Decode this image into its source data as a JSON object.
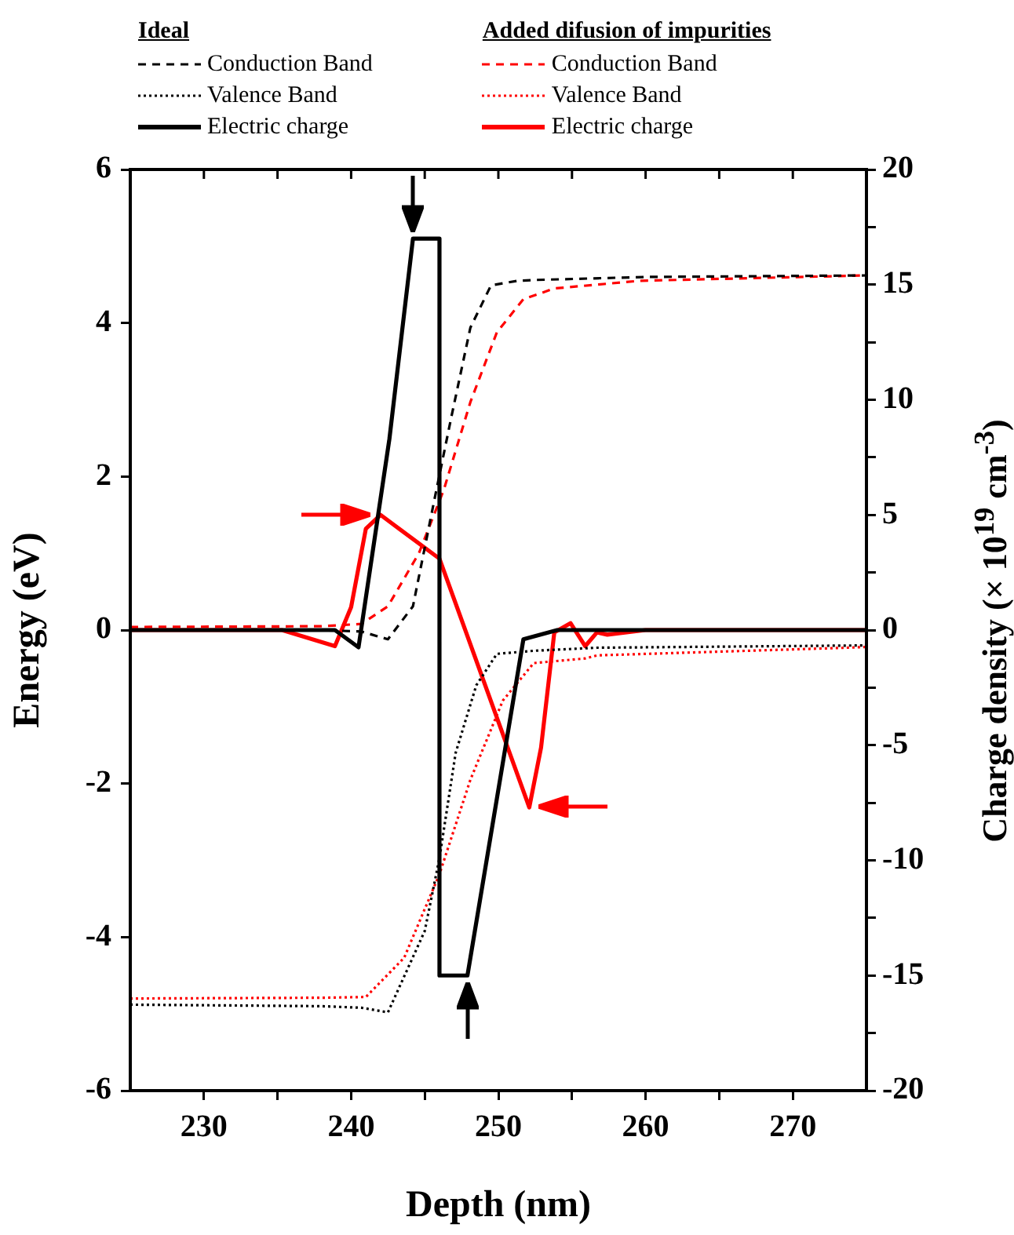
{
  "chart_data": {
    "type": "line",
    "xlabel": "Depth (nm)",
    "ylabel": "Energy (eV)",
    "y2label": "Charge density (× 10$^{19}$ cm$^{-3}$)",
    "annotations": [
      "Ideal",
      "Added difusion of impurities"
    ],
    "legend": "top",
    "grid": false,
    "marker": "none",
    "xlim": [
      225,
      275
    ],
    "xticks": [
      230,
      {
        "value": 235,
        "label": null
      },
      240,
      {
        "value": 245,
        "label": null
      },
      250,
      {
        "value": 255,
        "label": null
      },
      260,
      {
        "value": 265,
        "label": null
      },
      270
    ],
    "ylim": [
      -6,
      6
    ],
    "yticks": [
      -6,
      -4,
      -2,
      0,
      2,
      4,
      6
    ],
    "y2lim": [
      -20,
      20
    ],
    "y2ticks": [
      -20,
      {
        "value": -17.5,
        "label": null
      },
      -15,
      {
        "value": -12.5,
        "label": null
      },
      -10,
      {
        "value": -7.5,
        "label": null
      },
      -5,
      {
        "value": -2.5,
        "label": null
      },
      0,
      {
        "value": 2.5,
        "label": null
      },
      5,
      {
        "value": 7.5,
        "label": null
      },
      10,
      {
        "value": 12.5,
        "label": null
      },
      15,
      {
        "value": 17.5,
        "label": null
      },
      20
    ],
    "series": [
      {
        "name": "Conduction Band",
        "color": "#000000",
        "line_style": "dashed",
        "x": [
          225,
          238,
          240.7,
          242.5,
          244.2,
          245.7,
          246.8,
          248.1,
          249.5,
          251.3,
          252.4,
          260,
          275
        ],
        "values": [
          0,
          0,
          -0.02,
          -0.12,
          0.31,
          1.74,
          2.77,
          3.94,
          4.49,
          4.55,
          4.56,
          4.6,
          4.62
        ]
      },
      {
        "name": "Valence Band",
        "color": "#000000",
        "line_style": "dotted",
        "x": [
          225,
          238,
          240.7,
          242.5,
          245.0,
          246.0,
          247.1,
          248.5,
          249.9,
          252.4,
          256.7,
          275
        ],
        "values": [
          -4.88,
          -4.9,
          -4.92,
          -4.98,
          -3.92,
          -2.97,
          -1.6,
          -0.72,
          -0.31,
          -0.27,
          -0.23,
          -0.2
        ]
      },
      {
        "name": "Electric charge",
        "color": "#000000",
        "line_style": "solid",
        "axis": "y2",
        "x": [
          225,
          238.9,
          240.5,
          242.6,
          244.2,
          246.0,
          246.0,
          247.9,
          251.7,
          254.0,
          260,
          275
        ],
        "values": [
          0,
          0,
          -0.75,
          8.3,
          17,
          17,
          -15,
          -15,
          -0.4,
          0,
          0,
          0
        ]
      },
      {
        "name": "Conduction Band",
        "color": "#ff0000",
        "line_style": "dashed",
        "x": [
          225,
          238,
          240.7,
          242.5,
          244.6,
          246.3,
          248.1,
          249.9,
          251.7,
          253.8,
          259.6,
          275
        ],
        "values": [
          0.04,
          0.05,
          0.08,
          0.31,
          1.0,
          1.83,
          2.97,
          3.88,
          4.31,
          4.45,
          4.55,
          4.62
        ]
      },
      {
        "name": "Valence Band",
        "color": "#ff0000",
        "line_style": "dotted",
        "x": [
          225,
          238,
          241.0,
          243.6,
          246.0,
          248.1,
          250.3,
          252.4,
          255.9,
          256.7,
          273.7,
          275
        ],
        "values": [
          -4.8,
          -4.79,
          -4.78,
          -4.27,
          -3.18,
          -1.95,
          -0.92,
          -0.43,
          -0.37,
          -0.33,
          -0.23,
          -0.22
        ]
      },
      {
        "name": "Electric charge",
        "color": "#ff0000",
        "line_style": "solid",
        "axis": "y2",
        "x": [
          225,
          235.3,
          238.9,
          240.0,
          241.0,
          242.0,
          246.0,
          252.1,
          252.9,
          253.8,
          254.9,
          255.9,
          256.7,
          257.4,
          260,
          275
        ],
        "values": [
          0,
          0,
          -0.7,
          1.0,
          4.4,
          5.0,
          3.1,
          -7.7,
          -5.1,
          -0.1,
          0.3,
          -0.7,
          -0.1,
          -0.2,
          0,
          0
        ]
      }
    ]
  }
}
